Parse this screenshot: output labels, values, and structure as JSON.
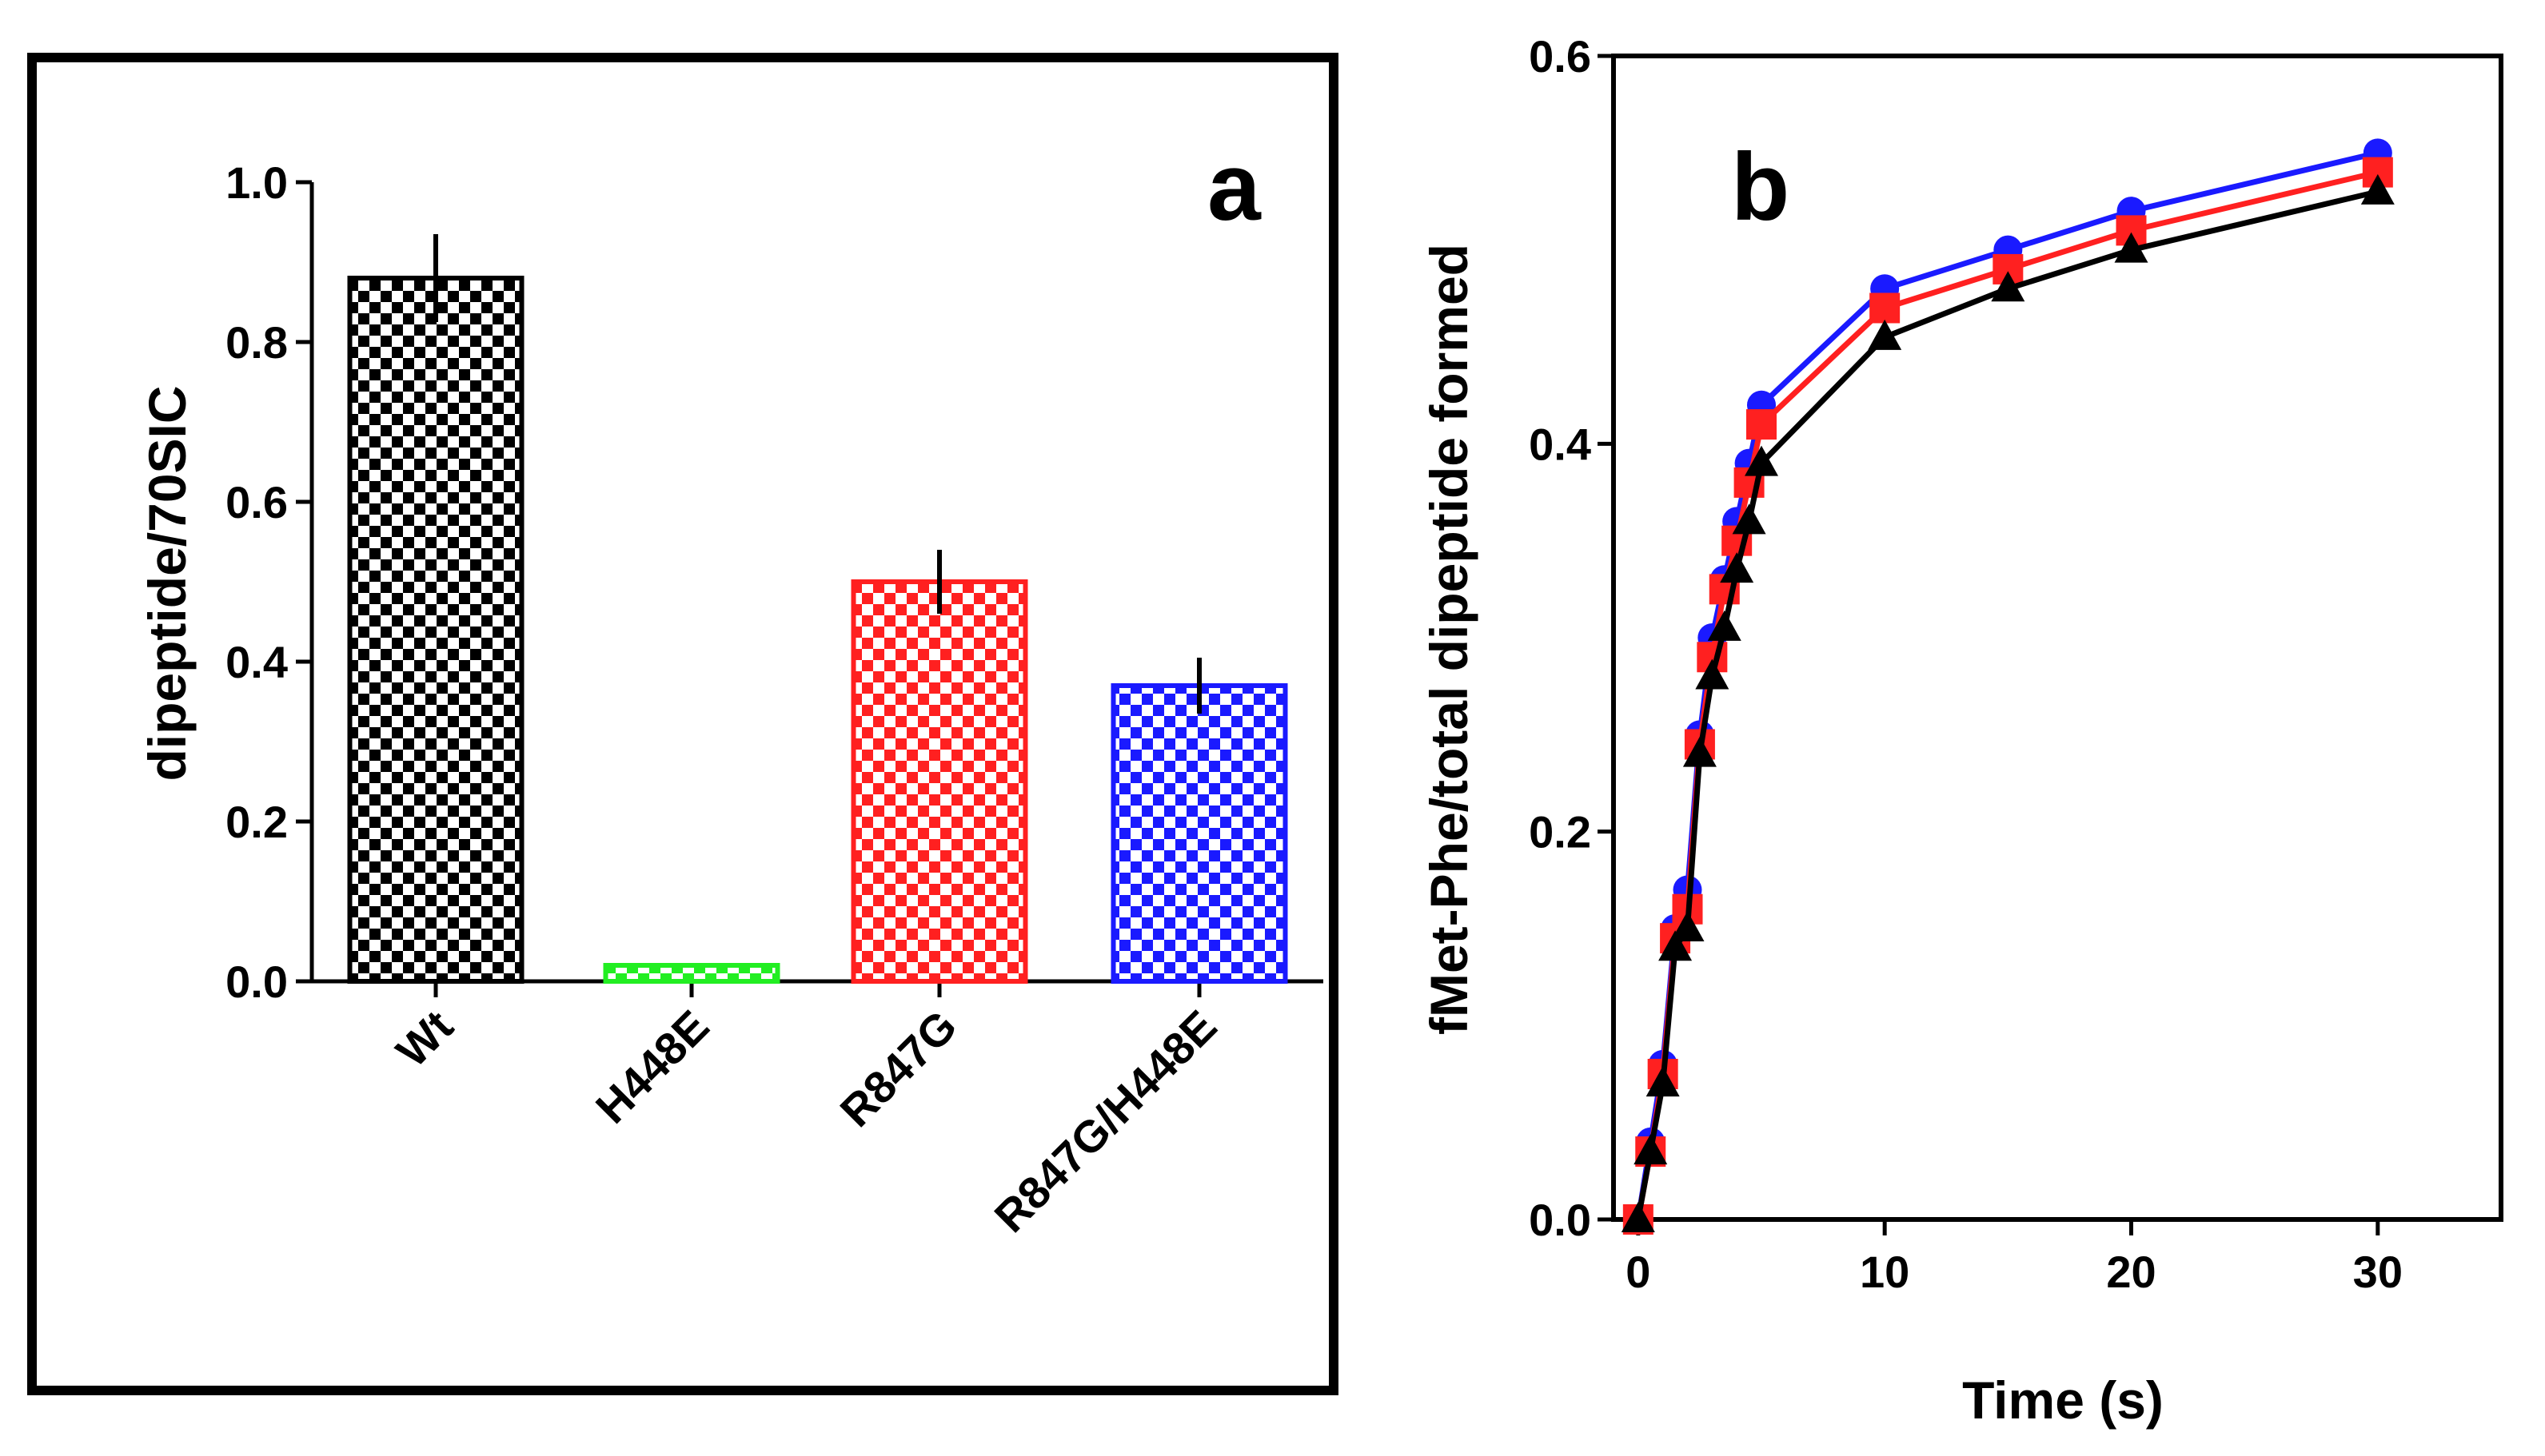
{
  "figure": {
    "colors": {
      "black": "#000000",
      "green": "#22ee22",
      "red": "#ff2020",
      "blue": "#1a1aff",
      "background": "#ffffff"
    }
  },
  "chart_data": [
    {
      "type": "bar",
      "panel_label": "a",
      "title": "",
      "xlabel": "",
      "ylabel": "dipeptide/70SIC",
      "ylim": [
        0,
        1.0
      ],
      "yticks": [
        "0.0",
        "0.2",
        "0.4",
        "0.6",
        "0.8",
        "1.0"
      ],
      "categories": [
        "Wt",
        "H448E",
        "R847G",
        "R847G/H448E"
      ],
      "values": [
        0.88,
        0.02,
        0.5,
        0.37
      ],
      "errors": [
        0.055,
        0.0,
        0.04,
        0.035
      ],
      "bar_colors": [
        "#000000",
        "#22ee22",
        "#ff2020",
        "#1a1aff"
      ],
      "pattern": "checkered",
      "grid": false,
      "frame": "box"
    },
    {
      "type": "line",
      "panel_label": "b",
      "title": "",
      "xlabel": "Time (s)",
      "ylabel": "fMet-Phe/total dipeptide formed",
      "xlim": [
        -1,
        35
      ],
      "ylim": [
        0,
        0.6
      ],
      "xticks": [
        "0",
        "10",
        "20",
        "30"
      ],
      "yticks": [
        "0.0",
        "0.2",
        "0.4",
        "0.6"
      ],
      "grid": false,
      "series": [
        {
          "name": "blue circles",
          "color": "#1a1aff",
          "marker": "circle",
          "x": [
            0,
            0.5,
            1,
            1.5,
            2,
            2.5,
            3,
            3.5,
            4,
            4.5,
            5,
            10,
            15,
            20,
            30
          ],
          "y": [
            0.0,
            0.04,
            0.08,
            0.15,
            0.17,
            0.25,
            0.3,
            0.33,
            0.36,
            0.39,
            0.42,
            0.48,
            0.5,
            0.52,
            0.55
          ]
        },
        {
          "name": "red squares",
          "color": "#ff2020",
          "marker": "square",
          "x": [
            0,
            0.5,
            1,
            1.5,
            2,
            2.5,
            3,
            3.5,
            4,
            4.5,
            5,
            10,
            15,
            20,
            30
          ],
          "y": [
            0.0,
            0.035,
            0.075,
            0.145,
            0.16,
            0.245,
            0.29,
            0.325,
            0.35,
            0.38,
            0.41,
            0.47,
            0.49,
            0.51,
            0.54
          ]
        },
        {
          "name": "black triangles",
          "color": "#000000",
          "marker": "triangle",
          "x": [
            0,
            0.5,
            1,
            1.5,
            2,
            2.5,
            3,
            3.5,
            4,
            4.5,
            5,
            10,
            15,
            20,
            30
          ],
          "y": [
            0.0,
            0.035,
            0.07,
            0.14,
            0.15,
            0.24,
            0.28,
            0.305,
            0.335,
            0.36,
            0.39,
            0.455,
            0.48,
            0.5,
            0.53
          ]
        }
      ]
    }
  ]
}
